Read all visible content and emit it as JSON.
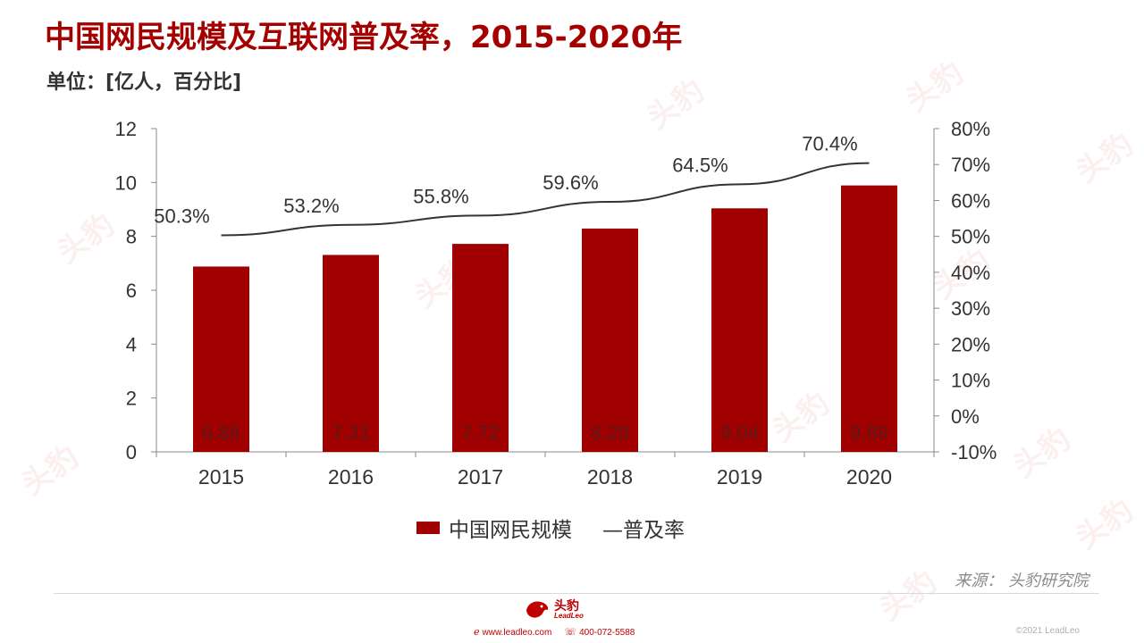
{
  "title": "中国网民规模及互联网普及率，2015-2020年",
  "unit": "单位：[亿人，百分比]",
  "legend": {
    "bar_label": "中国网民规模",
    "line_label": "—普及率"
  },
  "source": "来源：  头豹研究院",
  "footer": {
    "logo_cn": "头豹",
    "logo_en": "LeadLeo",
    "website": "www.leadleo.com",
    "phone": "400-072-5588",
    "copyright": "©2021 LeadLeo"
  },
  "watermark_text": "头豹",
  "colors": {
    "bar": "#a00000",
    "line": "#333333",
    "title": "#a50000"
  },
  "chart_data": {
    "type": "bar",
    "categories": [
      "2015",
      "2016",
      "2017",
      "2018",
      "2019",
      "2020"
    ],
    "series": [
      {
        "name": "中国网民规模",
        "type": "bar",
        "axis": "left",
        "values": [
          6.88,
          7.31,
          7.72,
          8.29,
          9.04,
          9.89
        ],
        "labels": [
          "6.88",
          "7.31",
          "7.72",
          "8.29",
          "9.04",
          "9.89"
        ]
      },
      {
        "name": "普及率",
        "type": "line",
        "axis": "right",
        "values": [
          50.3,
          53.2,
          55.8,
          59.6,
          64.5,
          70.4
        ],
        "labels": [
          "50.3%",
          "53.2%",
          "55.8%",
          "59.6%",
          "64.5%",
          "70.4%"
        ]
      }
    ],
    "y_left": {
      "min": 0,
      "max": 12,
      "ticks": [
        "0",
        "2",
        "4",
        "6",
        "8",
        "10",
        "12"
      ]
    },
    "y_right": {
      "min": -10,
      "max": 80,
      "ticks": [
        "-10%",
        "0%",
        "10%",
        "20%",
        "30%",
        "40%",
        "50%",
        "60%",
        "70%",
        "80%"
      ]
    },
    "grid": false,
    "legend_position": "bottom"
  }
}
